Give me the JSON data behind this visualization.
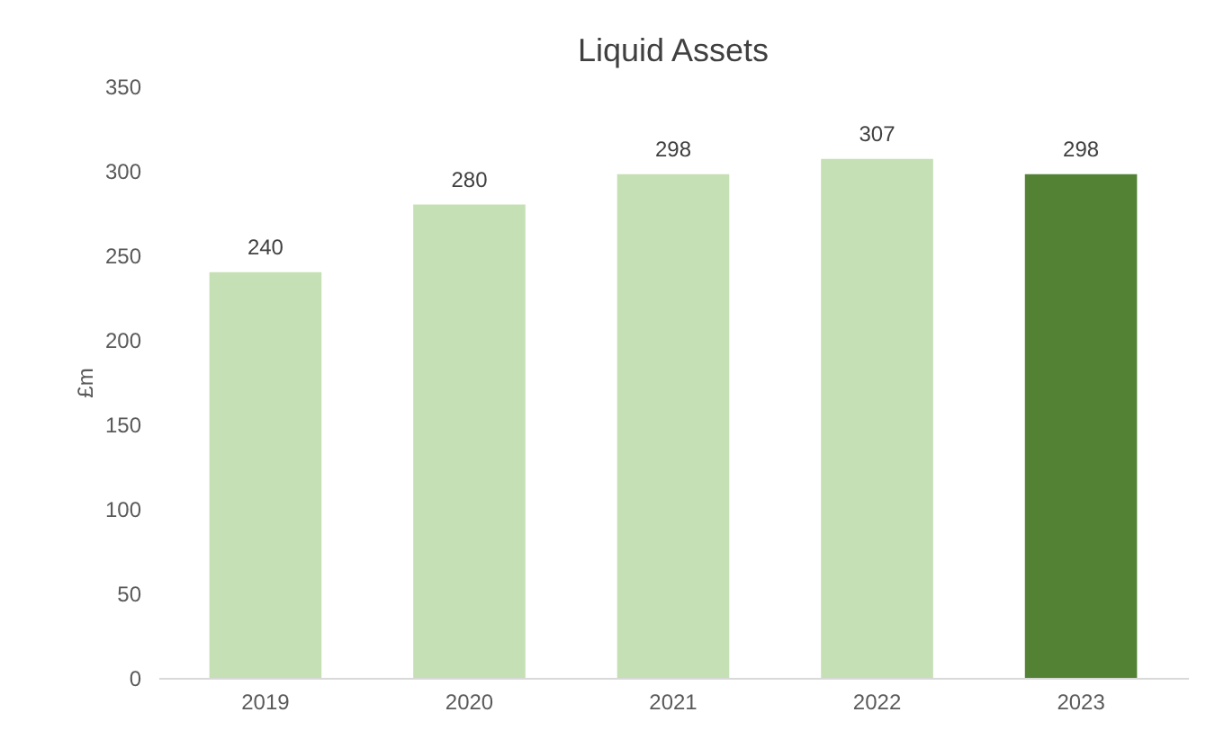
{
  "chart_data": {
    "type": "bar",
    "title": "Liquid Assets",
    "ylabel": "£m",
    "categories": [
      "2019",
      "2020",
      "2021",
      "2022",
      "2023"
    ],
    "values": [
      240,
      280,
      298,
      307,
      298
    ],
    "colors": [
      "#c5e0b4",
      "#c5e0b4",
      "#c5e0b4",
      "#c5e0b4",
      "#548235"
    ],
    "ylim": [
      0,
      350
    ],
    "yticks": [
      0,
      50,
      100,
      150,
      200,
      250,
      300,
      350
    ],
    "grid": false,
    "data_labels": true
  }
}
